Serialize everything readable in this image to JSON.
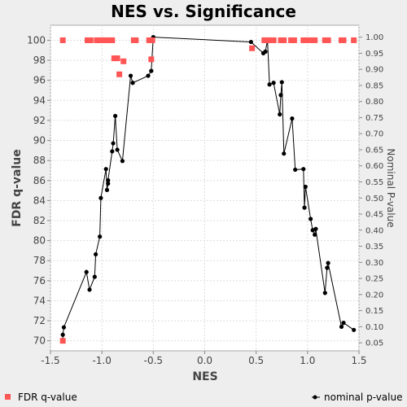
{
  "chart_data": {
    "type": "scatter",
    "title": "NES vs. Significance",
    "xlabel": "NES",
    "ylabel": "FDR q-value",
    "y2label": "Nominal P-value",
    "xlim": [
      -1.5,
      1.5
    ],
    "ylim": [
      69,
      101.5
    ],
    "y2lim": [
      0.025,
      1.037
    ],
    "xticks": [
      "-1.5",
      "-1.0",
      "-0.5",
      "0.0",
      "0.5",
      "1.0",
      "1.5"
    ],
    "xtick_values": [
      -1.5,
      -1.0,
      -0.5,
      0.0,
      0.5,
      1.0,
      1.5
    ],
    "yticks": [
      "70",
      "72",
      "74",
      "76",
      "78",
      "80",
      "82",
      "84",
      "86",
      "88",
      "90",
      "92",
      "94",
      "96",
      "98",
      "100"
    ],
    "ytick_values": [
      70,
      72,
      74,
      76,
      78,
      80,
      82,
      84,
      86,
      88,
      90,
      92,
      94,
      96,
      98,
      100
    ],
    "y2ticks": [
      "0.05",
      "0.10",
      "0.15",
      "0.20",
      "0.25",
      "0.30",
      "0.35",
      "0.40",
      "0.45",
      "0.50",
      "0.55",
      "0.60",
      "0.65",
      "0.70",
      "0.75",
      "0.80",
      "0.85",
      "0.90",
      "0.95",
      "1.00"
    ],
    "y2tick_values": [
      0.05,
      0.1,
      0.15,
      0.2,
      0.25,
      0.3,
      0.35,
      0.4,
      0.45,
      0.5,
      0.55,
      0.6,
      0.65,
      0.7,
      0.75,
      0.8,
      0.85,
      0.9,
      0.95,
      1.0
    ],
    "grid": true,
    "legend_position": "bottom",
    "series": [
      {
        "name": "FDR q-value",
        "axis": "left",
        "color": "#ff5555",
        "marker": "square",
        "points": [
          [
            -1.38,
            100
          ],
          [
            -1.14,
            100
          ],
          [
            -1.11,
            100
          ],
          [
            -1.05,
            100
          ],
          [
            -1.02,
            100
          ],
          [
            -0.99,
            100
          ],
          [
            -0.96,
            100
          ],
          [
            -0.93,
            100
          ],
          [
            -0.9,
            100
          ],
          [
            -0.69,
            100
          ],
          [
            -0.67,
            100
          ],
          [
            -0.54,
            100
          ],
          [
            -0.51,
            100
          ],
          [
            -0.88,
            98.2
          ],
          [
            -0.85,
            98.2
          ],
          [
            -0.79,
            97.9
          ],
          [
            -0.52,
            98.1
          ],
          [
            -0.83,
            96.6
          ],
          [
            -1.38,
            70.0
          ],
          [
            0.46,
            99.2
          ],
          [
            0.58,
            100
          ],
          [
            0.6,
            100
          ],
          [
            0.62,
            100
          ],
          [
            0.64,
            100
          ],
          [
            0.67,
            100
          ],
          [
            0.74,
            100
          ],
          [
            0.77,
            100
          ],
          [
            0.84,
            100
          ],
          [
            0.87,
            100
          ],
          [
            0.96,
            100
          ],
          [
            0.99,
            100
          ],
          [
            1.04,
            100
          ],
          [
            1.07,
            100
          ],
          [
            1.17,
            100
          ],
          [
            1.2,
            100
          ],
          [
            1.33,
            100
          ],
          [
            1.35,
            100
          ],
          [
            1.45,
            100
          ]
        ]
      },
      {
        "name": "nominal p-value",
        "axis": "right",
        "color": "#000000",
        "marker": "circle",
        "points": [
          [
            -1.38,
            0.055
          ],
          [
            -1.38,
            0.075
          ],
          [
            -1.37,
            0.098
          ],
          [
            -1.15,
            0.27
          ],
          [
            -1.12,
            0.215
          ],
          [
            -1.07,
            0.255
          ],
          [
            -1.06,
            0.325
          ],
          [
            -1.02,
            0.38
          ],
          [
            -1.01,
            0.5
          ],
          [
            -0.96,
            0.59
          ],
          [
            -0.95,
            0.525
          ],
          [
            -0.94,
            0.545
          ],
          [
            -0.94,
            0.555
          ],
          [
            -0.9,
            0.645
          ],
          [
            -0.89,
            0.67
          ],
          [
            -0.87,
            0.755
          ],
          [
            -0.85,
            0.65
          ],
          [
            -0.8,
            0.615
          ],
          [
            -0.72,
            0.88
          ],
          [
            -0.7,
            0.858
          ],
          [
            -0.55,
            0.88
          ],
          [
            -0.52,
            0.895
          ],
          [
            -0.5,
            1.0
          ],
          [
            0.45,
            0.985
          ],
          [
            0.57,
            0.95
          ],
          [
            0.59,
            0.955
          ],
          [
            0.61,
            0.99
          ],
          [
            0.63,
            0.853
          ],
          [
            0.67,
            0.858
          ],
          [
            0.73,
            0.76
          ],
          [
            0.74,
            0.82
          ],
          [
            0.75,
            0.86
          ],
          [
            0.77,
            0.638
          ],
          [
            0.85,
            0.747
          ],
          [
            0.88,
            0.588
          ],
          [
            0.96,
            0.59
          ],
          [
            0.97,
            0.47
          ],
          [
            0.98,
            0.535
          ],
          [
            1.03,
            0.435
          ],
          [
            1.05,
            0.4
          ],
          [
            1.07,
            0.386
          ],
          [
            1.08,
            0.404
          ],
          [
            1.17,
            0.205
          ],
          [
            1.19,
            0.283
          ],
          [
            1.2,
            0.298
          ],
          [
            1.33,
            0.1
          ],
          [
            1.35,
            0.112
          ],
          [
            1.45,
            0.09
          ]
        ]
      }
    ]
  }
}
